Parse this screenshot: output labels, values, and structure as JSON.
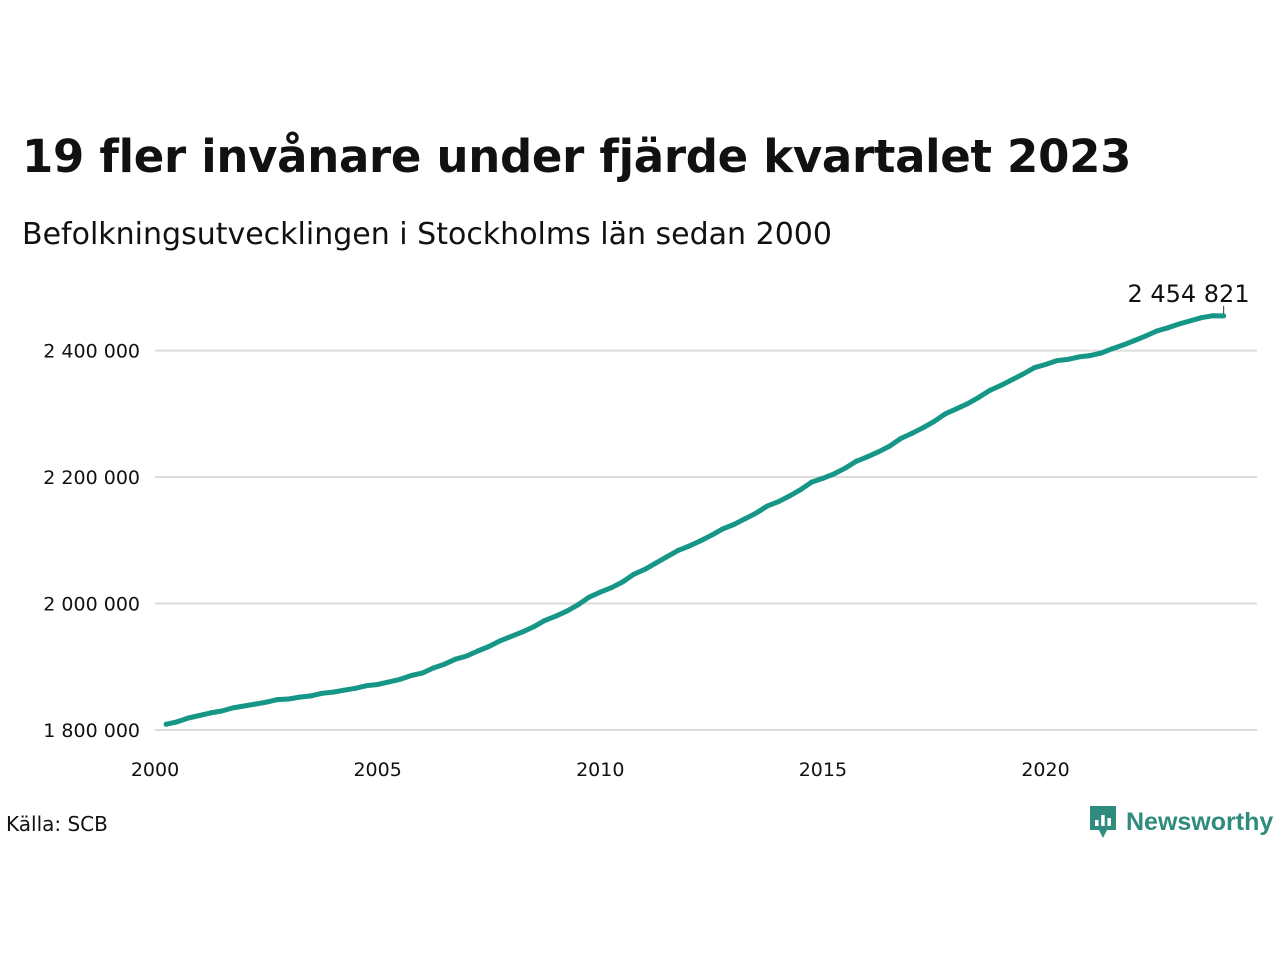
{
  "title": "19 fler invånare under fjärde kvartalet 2023",
  "subtitle": "Befolkningsutvecklingen i Stockholms län sedan 2000",
  "source": "Källa: SCB",
  "brand": {
    "name": "Newsworthy",
    "color": "#2e8b7e"
  },
  "colors": {
    "line": "#169687",
    "grid": "#dcdcdc",
    "text": "#111111"
  },
  "chart_data": {
    "type": "line",
    "title": "19 fler invånare under fjärde kvartalet 2023",
    "subtitle": "Befolkningsutvecklingen i Stockholms län sedan 2000",
    "xlabel": "",
    "ylabel": "",
    "xlim": [
      2000,
      2024.75
    ],
    "ylim": [
      1800000,
      2480000
    ],
    "x_ticks": [
      2000,
      2005,
      2010,
      2015,
      2020
    ],
    "x_tick_labels": [
      "2000",
      "2005",
      "2010",
      "2015",
      "2020"
    ],
    "y_ticks": [
      1800000,
      2000000,
      2200000,
      2400000
    ],
    "y_tick_labels": [
      "1 800 000",
      "2 000 000",
      "2 200 000",
      "2 400 000"
    ],
    "grid": true,
    "legend": "none",
    "end_label": "2 454 821",
    "series": [
      {
        "name": "",
        "x": [
          2000.25,
          2000.5,
          2000.75,
          2001,
          2001.25,
          2001.5,
          2001.75,
          2002,
          2002.25,
          2002.5,
          2002.75,
          2003,
          2003.25,
          2003.5,
          2003.75,
          2004,
          2004.25,
          2004.5,
          2004.75,
          2005,
          2005.25,
          2005.5,
          2005.75,
          2006,
          2006.25,
          2006.5,
          2006.75,
          2007,
          2007.25,
          2007.5,
          2007.75,
          2008,
          2008.25,
          2008.5,
          2008.75,
          2009,
          2009.25,
          2009.5,
          2009.75,
          2010,
          2010.25,
          2010.5,
          2010.75,
          2011,
          2011.25,
          2011.5,
          2011.75,
          2012,
          2012.25,
          2012.5,
          2012.75,
          2013,
          2013.25,
          2013.5,
          2013.75,
          2014,
          2014.25,
          2014.5,
          2014.75,
          2015,
          2015.25,
          2015.5,
          2015.75,
          2016,
          2016.25,
          2016.5,
          2016.75,
          2017,
          2017.25,
          2017.5,
          2017.75,
          2018,
          2018.25,
          2018.5,
          2018.75,
          2019,
          2019.25,
          2019.5,
          2019.75,
          2020,
          2020.25,
          2020.5,
          2020.75,
          2021,
          2021.25,
          2021.5,
          2021.75,
          2022,
          2022.25,
          2022.5,
          2022.75,
          2023,
          2023.25,
          2023.5,
          2023.75,
          2024
        ],
        "values": [
          1809000,
          1813000,
          1819000,
          1823000,
          1827000,
          1830000,
          1835000,
          1838000,
          1841000,
          1844000,
          1848000,
          1849000,
          1852000,
          1854000,
          1858000,
          1860000,
          1863000,
          1866000,
          1870000,
          1872000,
          1876000,
          1880000,
          1886000,
          1890000,
          1898000,
          1904000,
          1912000,
          1917000,
          1925000,
          1932000,
          1941000,
          1948000,
          1955000,
          1963000,
          1973000,
          1980000,
          1988000,
          1998000,
          2010000,
          2018000,
          2025000,
          2034000,
          2046000,
          2054000,
          2064000,
          2074000,
          2084000,
          2091000,
          2099000,
          2108000,
          2118000,
          2125000,
          2134000,
          2143000,
          2154000,
          2161000,
          2170000,
          2180000,
          2192000,
          2198000,
          2205000,
          2214000,
          2225000,
          2232000,
          2240000,
          2249000,
          2261000,
          2269000,
          2278000,
          2288000,
          2300000,
          2308000,
          2316000,
          2326000,
          2337000,
          2345000,
          2354000,
          2363000,
          2373000,
          2378000,
          2384000,
          2386000,
          2390000,
          2392000,
          2396000,
          2403000,
          2409000,
          2416000,
          2423000,
          2431000,
          2436000,
          2442000,
          2447000,
          2452000,
          2455000,
          2454821
        ]
      }
    ]
  }
}
